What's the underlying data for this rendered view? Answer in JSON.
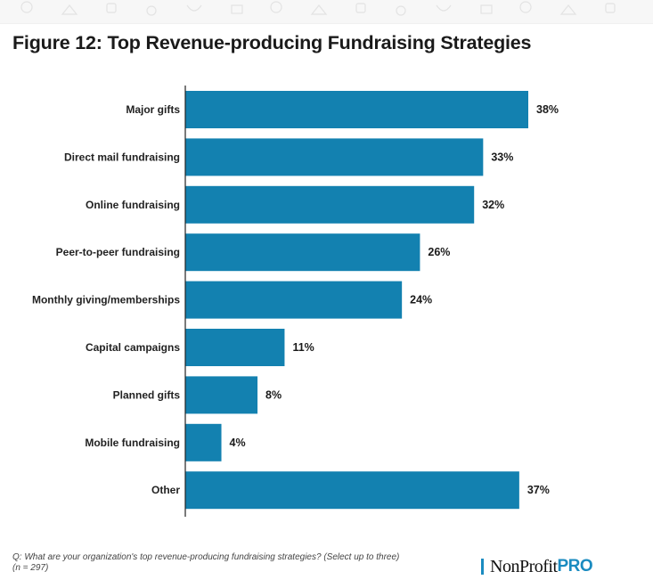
{
  "title": "Figure 12: Top Revenue-producing Fundraising Strategies",
  "colors": {
    "bar": "#1381b0",
    "axis": "#222222",
    "logo_accent": "#1a8bc0"
  },
  "chart_data": {
    "type": "bar",
    "orientation": "horizontal",
    "categories": [
      "Major gifts",
      "Direct mail fundraising",
      "Online fundraising",
      "Peer-to-peer fundraising",
      "Monthly giving/memberships",
      "Capital campaigns",
      "Planned gifts",
      "Mobile fundraising",
      "Other"
    ],
    "values": [
      38,
      33,
      32,
      26,
      24,
      11,
      8,
      4,
      37
    ],
    "value_labels": [
      "38%",
      "33%",
      "32%",
      "26%",
      "24%",
      "11%",
      "8%",
      "4%",
      "37%"
    ],
    "xlim": [
      0,
      40
    ],
    "grid": false,
    "legend": "none"
  },
  "footnote": {
    "line1": "Q: What are your organization's top revenue-producing fundraising strategies? (Select up to three)",
    "line2": "(n = 297)"
  },
  "logo": {
    "part1": "NonProfit",
    "part2": "PRO"
  }
}
